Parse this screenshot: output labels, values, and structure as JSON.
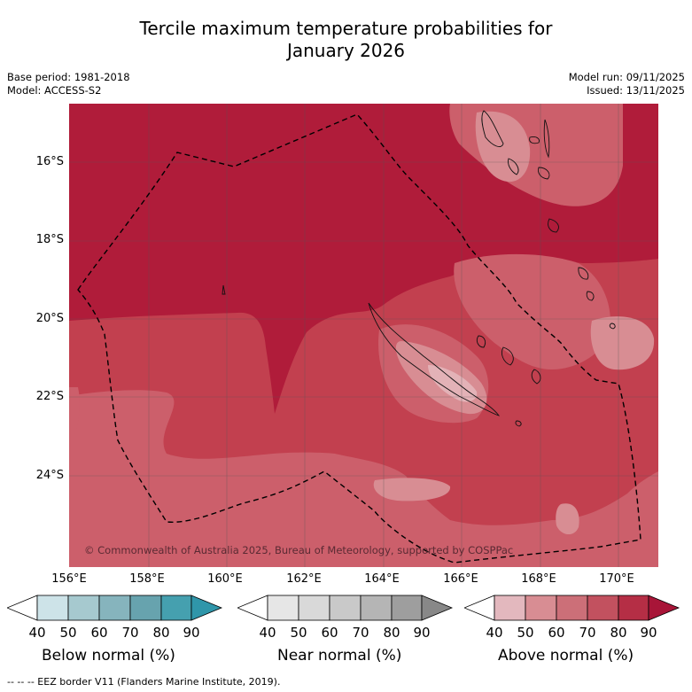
{
  "title_line1": "Tercile maximum temperature probabilities for",
  "title_line2": "January 2026",
  "base_period": "Base period: 1981-2018",
  "model": "Model: ACCESS-S2",
  "model_run": "Model run: 09/11/2025",
  "issued": "Issued: 13/11/2025",
  "map": {
    "lat_labels": [
      "16°S",
      "18°S",
      "20°S",
      "22°S",
      "24°S"
    ],
    "lon_labels": [
      "156°E",
      "158°E",
      "160°E",
      "162°E",
      "164°E",
      "166°E",
      "168°E",
      "170°E"
    ],
    "copyright": "© Commonwealth of Australia 2025, Bureau of Meteorology, supported by COSPPac",
    "colors": {
      "above_80_90": "#b01c3a",
      "above_70_80": "#c2404f",
      "above_60_70": "#cc5f6b",
      "above_50_60": "#d88d93",
      "above_40_50": "#e3b2b7"
    }
  },
  "legends": [
    {
      "title": "Below normal (%)",
      "ticks": [
        "40",
        "50",
        "60",
        "70",
        "80",
        "90"
      ],
      "colors": [
        "#ffffff",
        "#cde3e8",
        "#a6c9cf",
        "#86b4bd",
        "#67a3ae",
        "#45a0af",
        "#2f96aa"
      ]
    },
    {
      "title": "Near normal (%)",
      "ticks": [
        "40",
        "50",
        "60",
        "70",
        "80",
        "90"
      ],
      "colors": [
        "#ffffff",
        "#e6e6e6",
        "#d9d9d9",
        "#c9c9c9",
        "#b5b5b5",
        "#9e9e9e",
        "#888888"
      ]
    },
    {
      "title": "Above normal (%)",
      "ticks": [
        "40",
        "50",
        "60",
        "70",
        "80",
        "90"
      ],
      "colors": [
        "#ffffff",
        "#e3b8be",
        "#d88d93",
        "#cc6f78",
        "#c2515f",
        "#b52e45",
        "#a81538"
      ]
    }
  ],
  "footer": "-- -- -- EEZ border V11 (Flanders Marine Institute, 2019)."
}
